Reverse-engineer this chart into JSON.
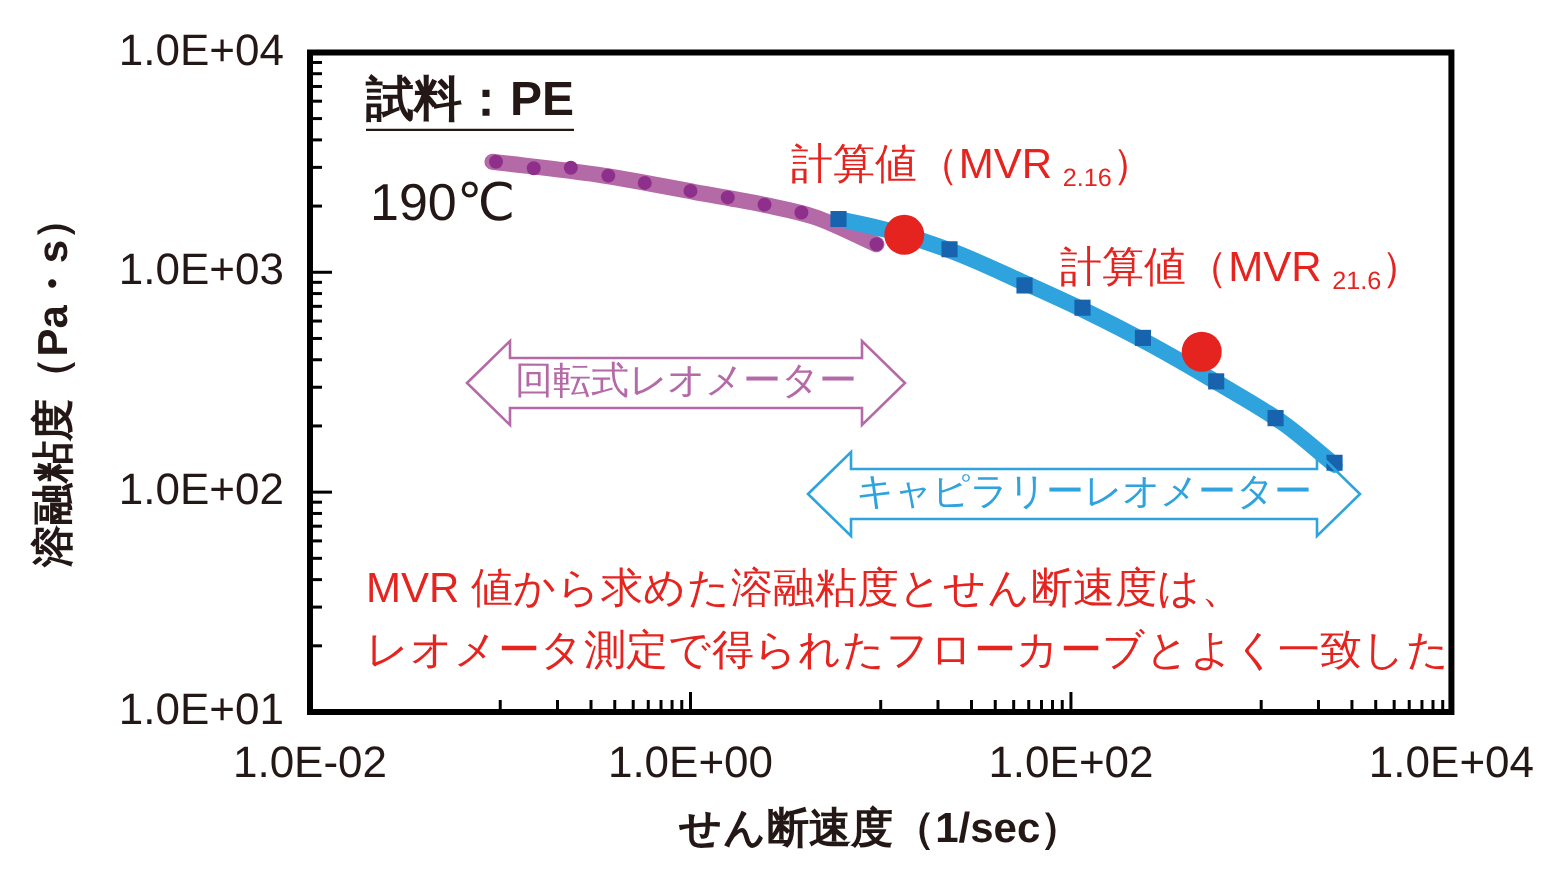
{
  "chart_data": {
    "type": "line",
    "xlabel": "せん断速度（1/sec）",
    "ylabel": "溶融粘度（Pa・s）",
    "log": "xy",
    "xlim": [
      0.01,
      10000
    ],
    "ylim": [
      10,
      10000
    ],
    "xticks": [
      {
        "value": 0.01,
        "label": "1.0E-02"
      },
      {
        "value": 0.1,
        "label": null
      },
      {
        "value": 0.2,
        "label": null
      },
      {
        "value": 0.3,
        "label": null
      },
      {
        "value": 0.4,
        "label": null
      },
      {
        "value": 0.5,
        "label": null
      },
      {
        "value": 0.6,
        "label": null
      },
      {
        "value": 0.7,
        "label": null
      },
      {
        "value": 0.8,
        "label": null
      },
      {
        "value": 0.9,
        "label": null
      },
      {
        "value": 1,
        "label": "1.0E+00"
      },
      {
        "value": 10,
        "label": null
      },
      {
        "value": 20,
        "label": null
      },
      {
        "value": 30,
        "label": null
      },
      {
        "value": 40,
        "label": null
      },
      {
        "value": 50,
        "label": null
      },
      {
        "value": 60,
        "label": null
      },
      {
        "value": 70,
        "label": null
      },
      {
        "value": 80,
        "label": null
      },
      {
        "value": 90,
        "label": null
      },
      {
        "value": 100,
        "label": "1.0E+02"
      },
      {
        "value": 1000,
        "label": null
      },
      {
        "value": 2000,
        "label": null
      },
      {
        "value": 3000,
        "label": null
      },
      {
        "value": 4000,
        "label": null
      },
      {
        "value": 5000,
        "label": null
      },
      {
        "value": 6000,
        "label": null
      },
      {
        "value": 7000,
        "label": null
      },
      {
        "value": 8000,
        "label": null
      },
      {
        "value": 9000,
        "label": null
      },
      {
        "value": 10000,
        "label": "1.0E+04"
      }
    ],
    "yticks": [
      {
        "value": 10,
        "label": "1.0E+01"
      },
      {
        "value": 20,
        "label": null
      },
      {
        "value": 30,
        "label": null
      },
      {
        "value": 40,
        "label": null
      },
      {
        "value": 50,
        "label": null
      },
      {
        "value": 60,
        "label": null
      },
      {
        "value": 70,
        "label": null
      },
      {
        "value": 80,
        "label": null
      },
      {
        "value": 90,
        "label": null
      },
      {
        "value": 100,
        "label": "1.0E+02"
      },
      {
        "value": 200,
        "label": null
      },
      {
        "value": 300,
        "label": null
      },
      {
        "value": 400,
        "label": null
      },
      {
        "value": 500,
        "label": null
      },
      {
        "value": 600,
        "label": null
      },
      {
        "value": 700,
        "label": null
      },
      {
        "value": 800,
        "label": null
      },
      {
        "value": 900,
        "label": null
      },
      {
        "value": 1000,
        "label": "1.0E+03"
      },
      {
        "value": 2000,
        "label": null
      },
      {
        "value": 3000,
        "label": null
      },
      {
        "value": 4000,
        "label": null
      },
      {
        "value": 5000,
        "label": null
      },
      {
        "value": 6000,
        "label": null
      },
      {
        "value": 7000,
        "label": null
      },
      {
        "value": 8000,
        "label": null
      },
      {
        "value": 9000,
        "label": null
      },
      {
        "value": 10000,
        "label": "1.0E+04"
      }
    ],
    "series": [
      {
        "color": "#b56aa8",
        "x": [
          0.091,
          0.324,
          1.07,
          2.49,
          4.53,
          9.5
        ],
        "values": [
          3180,
          2780,
          2310,
          2020,
          1780,
          1340
        ]
      },
      {
        "type": "scatter",
        "marker": "circle",
        "color": "#8e2f8c",
        "x": [
          0.095,
          0.15,
          0.235,
          0.37,
          0.575,
          1.0,
          1.57,
          2.45,
          3.83,
          9.5
        ],
        "values": [
          3180,
          2970,
          2990,
          2750,
          2550,
          2345,
          2190,
          2030,
          1870,
          1340
        ]
      },
      {
        "color": "#2ea3dd",
        "x": [
          6.0,
          10.9,
          24.3,
          54,
          120,
          267,
          594,
          1324,
          2430
        ],
        "values": [
          1746,
          1552,
          1236,
          914,
          665,
          466,
          313,
          204,
          133
        ]
      },
      {
        "type": "scatter",
        "marker": "square",
        "color": "#1763ad",
        "x": [
          6.0,
          23,
          57,
          115,
          239,
          580,
          1190,
          2430
        ],
        "values": [
          1746,
          1273,
          871,
          690,
          503,
          319,
          217,
          136
        ]
      },
      {
        "type": "scatter",
        "marker": "circle",
        "color": "#e52420",
        "x": [
          13.3,
          487
        ],
        "values": [
          1480,
          435
        ]
      }
    ],
    "annotations": [
      "試料：PE",
      "190℃",
      {
        "text": "計算値（MVR$_{2.16}$）",
        "x": 13.3,
        "y": 1480
      },
      {
        "text": "計算値（MVR$_{21.6}$）",
        "x": 487,
        "y": 435
      },
      "回転式レオメーター",
      "キャピラリーレオメーター",
      "MVR 値から求めた溶融粘度とせん断速度は、",
      "レオメータ測定で得られたフローカーブとよく一致した"
    ]
  }
}
